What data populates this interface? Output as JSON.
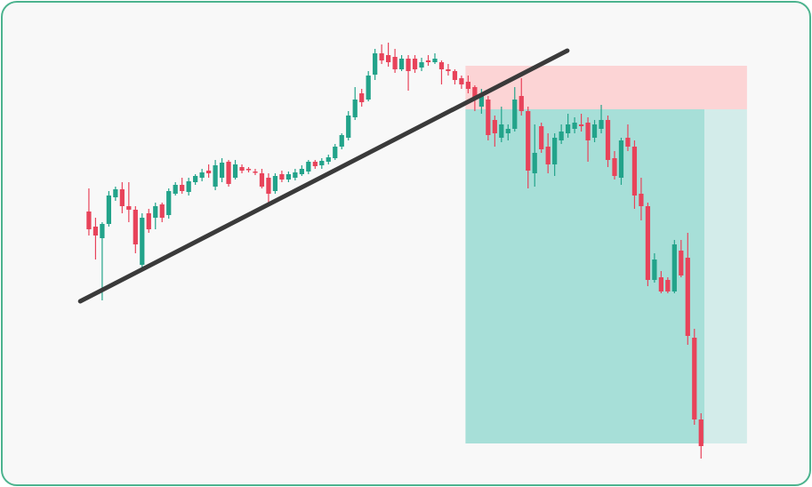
{
  "chart_data": {
    "type": "candlestick",
    "xlim": [
      -3,
      106
    ],
    "ylim": [
      52,
      600
    ],
    "up_color": "#22a38a",
    "down_color": "#e8435a",
    "open": [
      362,
      345,
      332,
      348,
      378,
      387,
      368,
      364,
      302,
      360,
      355,
      370,
      358,
      382,
      392,
      384,
      395,
      400,
      408,
      390,
      400,
      418,
      400,
      412,
      410,
      407,
      405,
      400,
      385,
      404,
      398,
      400,
      404,
      407,
      418,
      414,
      418,
      422,
      435,
      445,
      468,
      495,
      488,
      516,
      540,
      538,
      536,
      522,
      534,
      534,
      524,
      532,
      530,
      530,
      522,
      520,
      512,
      508,
      502,
      480,
      488,
      465,
      445,
      450,
      455,
      492,
      475,
      405,
      458,
      435,
      415,
      442,
      450,
      455,
      460,
      462,
      445,
      455,
      465,
      422,
      400,
      445,
      435,
      382,
      368,
      285,
      288,
      285,
      272,
      318,
      310,
      220,
      128
    ],
    "high": [
      388,
      355,
      350,
      385,
      390,
      395,
      395,
      368,
      360,
      365,
      372,
      372,
      388,
      395,
      400,
      400,
      404,
      410,
      415,
      420,
      422,
      420,
      420,
      415,
      412,
      410,
      410,
      405,
      405,
      408,
      407,
      410,
      414,
      420,
      420,
      422,
      426,
      438,
      450,
      475,
      502,
      500,
      520,
      545,
      550,
      552,
      545,
      538,
      538,
      538,
      535,
      538,
      540,
      532,
      528,
      522,
      515,
      515,
      504,
      500,
      492,
      470,
      480,
      460,
      502,
      512,
      480,
      460,
      462,
      450,
      450,
      460,
      472,
      468,
      472,
      468,
      465,
      482,
      470,
      430,
      445,
      460,
      442,
      400,
      372,
      315,
      295,
      288,
      330,
      330,
      338,
      230,
      135
    ],
    "low": [
      335,
      308,
      262,
      345,
      374,
      360,
      350,
      315,
      297,
      338,
      342,
      350,
      354,
      380,
      382,
      380,
      392,
      396,
      400,
      386,
      395,
      390,
      398,
      405,
      406,
      403,
      388,
      370,
      382,
      395,
      395,
      397,
      402,
      404,
      410,
      410,
      415,
      420,
      432,
      442,
      465,
      480,
      486,
      510,
      528,
      525,
      518,
      520,
      498,
      518,
      520,
      526,
      528,
      505,
      515,
      505,
      500,
      495,
      475,
      472,
      442,
      435,
      440,
      442,
      452,
      470,
      388,
      390,
      428,
      405,
      402,
      438,
      445,
      450,
      452,
      418,
      440,
      450,
      412,
      398,
      392,
      430,
      365,
      352,
      278,
      282,
      270,
      270,
      270,
      288,
      212,
      122,
      84
    ],
    "close": [
      342,
      335,
      348,
      380,
      387,
      368,
      364,
      325,
      355,
      342,
      368,
      355,
      385,
      392,
      385,
      396,
      402,
      406,
      405,
      414,
      417,
      393,
      415,
      408,
      409,
      406,
      390,
      382,
      402,
      398,
      404,
      406,
      410,
      418,
      413,
      419,
      423,
      435,
      448,
      470,
      488,
      485,
      515,
      540,
      532,
      530,
      522,
      534,
      520,
      522,
      530,
      530,
      534,
      522,
      520,
      510,
      505,
      500,
      490,
      492,
      448,
      450,
      460,
      455,
      488,
      475,
      408,
      428,
      432,
      415,
      445,
      452,
      460,
      462,
      458,
      442,
      460,
      465,
      420,
      402,
      442,
      435,
      380,
      368,
      285,
      308,
      272,
      272,
      325,
      290,
      222,
      128,
      98
    ],
    "trendline": {
      "x": [
        -1.3,
        71.9
      ],
      "y": [
        261,
        543
      ]
    },
    "position": {
      "x_start": 56.6,
      "x_mid": 92.5,
      "x_end": 98.9,
      "stop": 526,
      "entry": 477,
      "target": 101,
      "stop_color": "#fcd4d5",
      "target_color": "#a7dfd8",
      "target_fade_color": "#d3ecea"
    },
    "trendline_color": "#3a3a3a"
  }
}
